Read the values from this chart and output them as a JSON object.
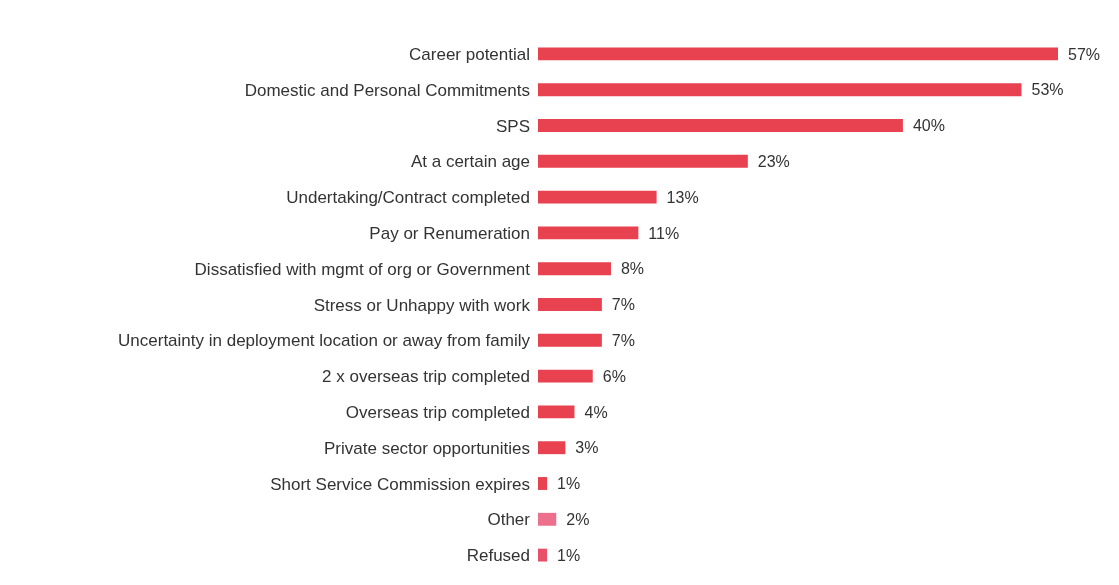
{
  "chart_data": {
    "type": "bar",
    "orientation": "horizontal",
    "categories": [
      "Career potential",
      "Domestic and Personal Commitments",
      "SPS",
      "At a certain age",
      "Undertaking/Contract completed",
      "Pay or Renumeration",
      "Dissatisfied with mgmt of org or Government",
      "Stress or Unhappy with work",
      "Uncertainty in deployment location or away from family",
      "2 x overseas trip completed",
      "Overseas trip completed",
      "Private sector opportunities",
      "Short Service Commission expires",
      "Other",
      "Refused"
    ],
    "values": [
      57,
      53,
      40,
      23,
      13,
      11,
      8,
      7,
      7,
      6,
      4,
      3,
      1,
      2,
      1
    ],
    "value_labels": [
      "57%",
      "53%",
      "40%",
      "23%",
      "13%",
      "11%",
      "8%",
      "7%",
      "7%",
      "6%",
      "4%",
      "3%",
      "1%",
      "2%",
      "1%"
    ],
    "colors": [
      "#e8414f",
      "#e8414f",
      "#e8414f",
      "#e8414f",
      "#e8414f",
      "#e8414f",
      "#e8414f",
      "#e8414f",
      "#e8414f",
      "#e8414f",
      "#e8414f",
      "#e8414f",
      "#e8414f",
      "#ec6f8c",
      "#e8506a"
    ],
    "grid": false,
    "legend": false
  }
}
